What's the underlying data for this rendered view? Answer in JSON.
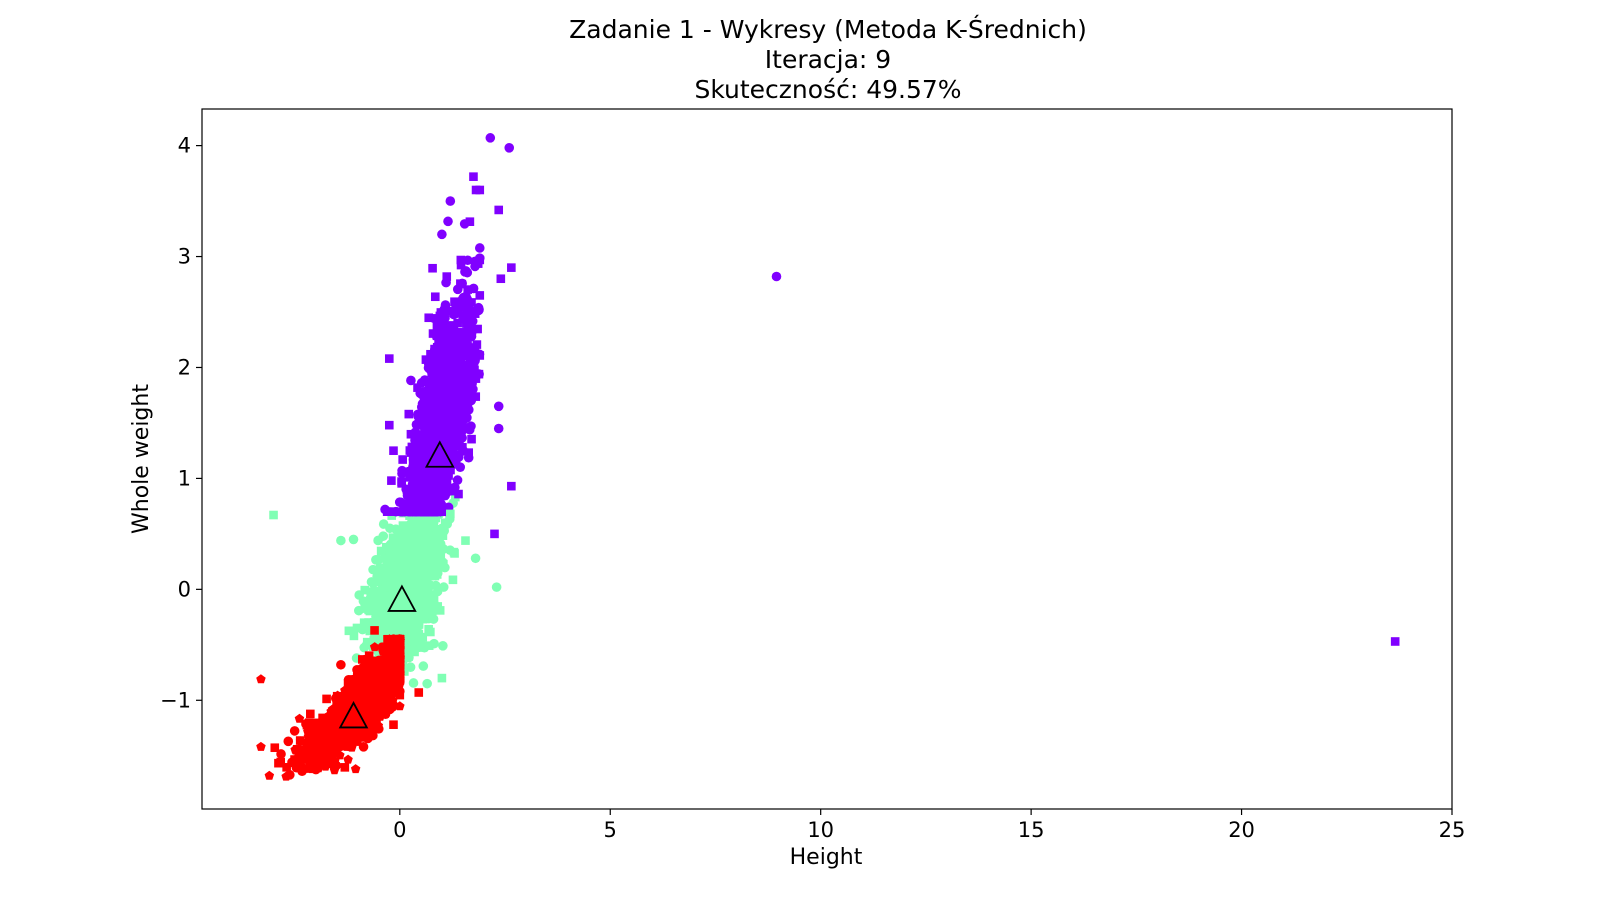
{
  "chart_data": {
    "type": "scatter",
    "title_lines": [
      "Zadanie 1 - Wykresy (Metoda K-Średnich)",
      "Iteracja: 9",
      "Skuteczność: 49.57%"
    ],
    "xlabel": "Height",
    "ylabel": "Whole weight",
    "xlim": [
      -4.7,
      25.0
    ],
    "ylim": [
      -1.98,
      4.33
    ],
    "xticks": [
      {
        "value": 0,
        "label": "0"
      },
      {
        "value": 5,
        "label": "5"
      },
      {
        "value": 10,
        "label": "10"
      },
      {
        "value": 15,
        "label": "15"
      },
      {
        "value": 20,
        "label": "20"
      },
      {
        "value": 25,
        "label": "25"
      }
    ],
    "yticks": [
      {
        "value": -1,
        "label": "−1"
      },
      {
        "value": 0,
        "label": "0"
      },
      {
        "value": 1,
        "label": "1"
      },
      {
        "value": 2,
        "label": "2"
      },
      {
        "value": 3,
        "label": "3"
      },
      {
        "value": 4,
        "label": "4"
      }
    ],
    "grid": false,
    "marker_note": "marker shape (circle / square / pentagon) distinguishes true class; color distinguishes assigned cluster",
    "clusters": [
      {
        "color": "#8000ff",
        "centroid": {
          "x": 0.95,
          "y": 1.2
        },
        "spread": {
          "x": [
            -0.3,
            1.9
          ],
          "y": [
            0.7,
            3.6
          ],
          "center": [
            1.0,
            1.45
          ],
          "sd": [
            0.38,
            0.55
          ]
        },
        "notable_points": [
          {
            "x": 2.15,
            "y": 4.07,
            "marker": "circle"
          },
          {
            "x": 2.6,
            "y": 3.98,
            "marker": "circle"
          },
          {
            "x": 2.35,
            "y": 3.42,
            "marker": "square"
          },
          {
            "x": 1.75,
            "y": 3.72,
            "marker": "square"
          },
          {
            "x": 1.2,
            "y": 3.5,
            "marker": "circle"
          },
          {
            "x": 2.65,
            "y": 2.9,
            "marker": "square"
          },
          {
            "x": 2.4,
            "y": 2.8,
            "marker": "square"
          },
          {
            "x": 1.0,
            "y": 3.2,
            "marker": "circle"
          },
          {
            "x": -0.25,
            "y": 2.08,
            "marker": "square"
          },
          {
            "x": -0.25,
            "y": 1.48,
            "marker": "square"
          },
          {
            "x": -0.15,
            "y": 1.25,
            "marker": "square"
          },
          {
            "x": -0.2,
            "y": 0.98,
            "marker": "square"
          },
          {
            "x": -0.35,
            "y": 0.72,
            "marker": "circle"
          },
          {
            "x": 2.65,
            "y": 0.93,
            "marker": "square"
          },
          {
            "x": 2.35,
            "y": 1.45,
            "marker": "circle"
          },
          {
            "x": 2.35,
            "y": 1.65,
            "marker": "circle"
          },
          {
            "x": 2.25,
            "y": 0.5,
            "marker": "square"
          },
          {
            "x": 8.95,
            "y": 2.82,
            "marker": "circle"
          },
          {
            "x": 23.65,
            "y": -0.47,
            "marker": "square"
          }
        ]
      },
      {
        "color": "#80ffb4",
        "centroid": {
          "x": 0.05,
          "y": -0.1
        },
        "spread": {
          "x": [
            -1.3,
            1.6
          ],
          "y": [
            -0.85,
            0.85
          ],
          "center": [
            0.15,
            0.0
          ],
          "sd": [
            0.42,
            0.33
          ]
        },
        "notable_points": [
          {
            "x": -3.0,
            "y": 0.67,
            "marker": "square"
          },
          {
            "x": -1.4,
            "y": 0.44,
            "marker": "circle"
          },
          {
            "x": -1.1,
            "y": 0.45,
            "marker": "circle"
          },
          {
            "x": 2.3,
            "y": 0.02,
            "marker": "circle"
          },
          {
            "x": 1.8,
            "y": 0.28,
            "marker": "circle"
          },
          {
            "x": 1.2,
            "y": 0.68,
            "marker": "square"
          },
          {
            "x": 1.0,
            "y": -0.8,
            "marker": "square"
          },
          {
            "x": 0.65,
            "y": -0.85,
            "marker": "circle"
          }
        ]
      },
      {
        "color": "#ff0000",
        "centroid": {
          "x": -1.1,
          "y": -1.15
        },
        "spread": {
          "x": [
            -3.1,
            0.0
          ],
          "y": [
            -1.7,
            -0.45
          ],
          "center": [
            -0.85,
            -1.05
          ],
          "sd": [
            0.45,
            0.25
          ]
        },
        "notable_points": [
          {
            "x": -3.3,
            "y": -0.81,
            "marker": "pentagon"
          },
          {
            "x": -3.3,
            "y": -1.42,
            "marker": "pentagon"
          },
          {
            "x": -3.1,
            "y": -1.68,
            "marker": "pentagon"
          },
          {
            "x": -1.05,
            "y": -1.62,
            "marker": "pentagon"
          },
          {
            "x": -0.6,
            "y": -0.37,
            "marker": "square"
          },
          {
            "x": 0.45,
            "y": -0.93,
            "marker": "square"
          },
          {
            "x": -0.1,
            "y": -0.48,
            "marker": "square"
          },
          {
            "x": -1.5,
            "y": -1.02,
            "marker": "square"
          },
          {
            "x": -1.4,
            "y": -0.68,
            "marker": "circle"
          },
          {
            "x": -0.15,
            "y": -1.22,
            "marker": "square"
          }
        ]
      }
    ]
  }
}
